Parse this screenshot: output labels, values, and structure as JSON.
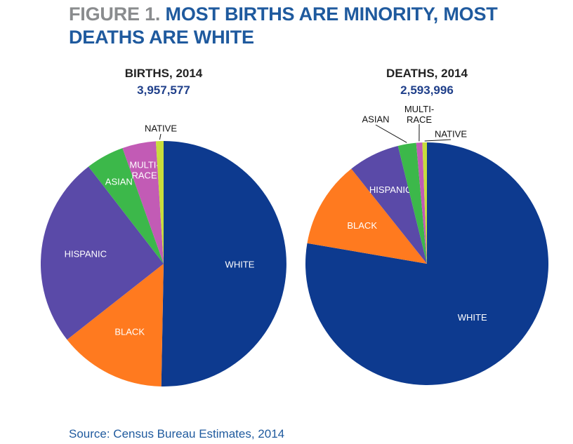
{
  "figure_title": {
    "lead": "FIGURE 1.",
    "text": "MOST BIRTHS ARE MINORITY, MOST DEATHS ARE WHITE"
  },
  "chart_data": [
    {
      "type": "pie",
      "title": "BIRTHS, 2014",
      "subtitle": "3,957,577",
      "slices": [
        {
          "label": "WHITE",
          "value": 50.0,
          "color": "#0d3a8f"
        },
        {
          "label": "BLACK",
          "value": 14.0,
          "color": "#ff7a1f"
        },
        {
          "label": "HISPANIC",
          "value": 25.0,
          "color": "#5a4aa8"
        },
        {
          "label": "ASIAN",
          "value": 5.0,
          "color": "#3cb84a"
        },
        {
          "label": "MULTI-RACE",
          "value": 4.4,
          "color": "#c25bb5"
        },
        {
          "label": "NATIVE",
          "value": 1.0,
          "color": "#c7dd3c"
        }
      ]
    },
    {
      "type": "pie",
      "title": "DEATHS, 2014",
      "subtitle": "2,593,996",
      "slices": [
        {
          "label": "WHITE",
          "value": 77.0,
          "color": "#0d3a8f"
        },
        {
          "label": "BLACK",
          "value": 11.5,
          "color": "#ff7a1f"
        },
        {
          "label": "HISPANIC",
          "value": 6.8,
          "color": "#5a4aa8"
        },
        {
          "label": "ASIAN",
          "value": 2.4,
          "color": "#3cb84a"
        },
        {
          "label": "MULTI-RACE",
          "value": 0.8,
          "color": "#c25bb5"
        },
        {
          "label": "NATIVE",
          "value": 0.6,
          "color": "#c7dd3c"
        }
      ]
    }
  ],
  "source": "Source: Census Bureau Estimates, 2014"
}
